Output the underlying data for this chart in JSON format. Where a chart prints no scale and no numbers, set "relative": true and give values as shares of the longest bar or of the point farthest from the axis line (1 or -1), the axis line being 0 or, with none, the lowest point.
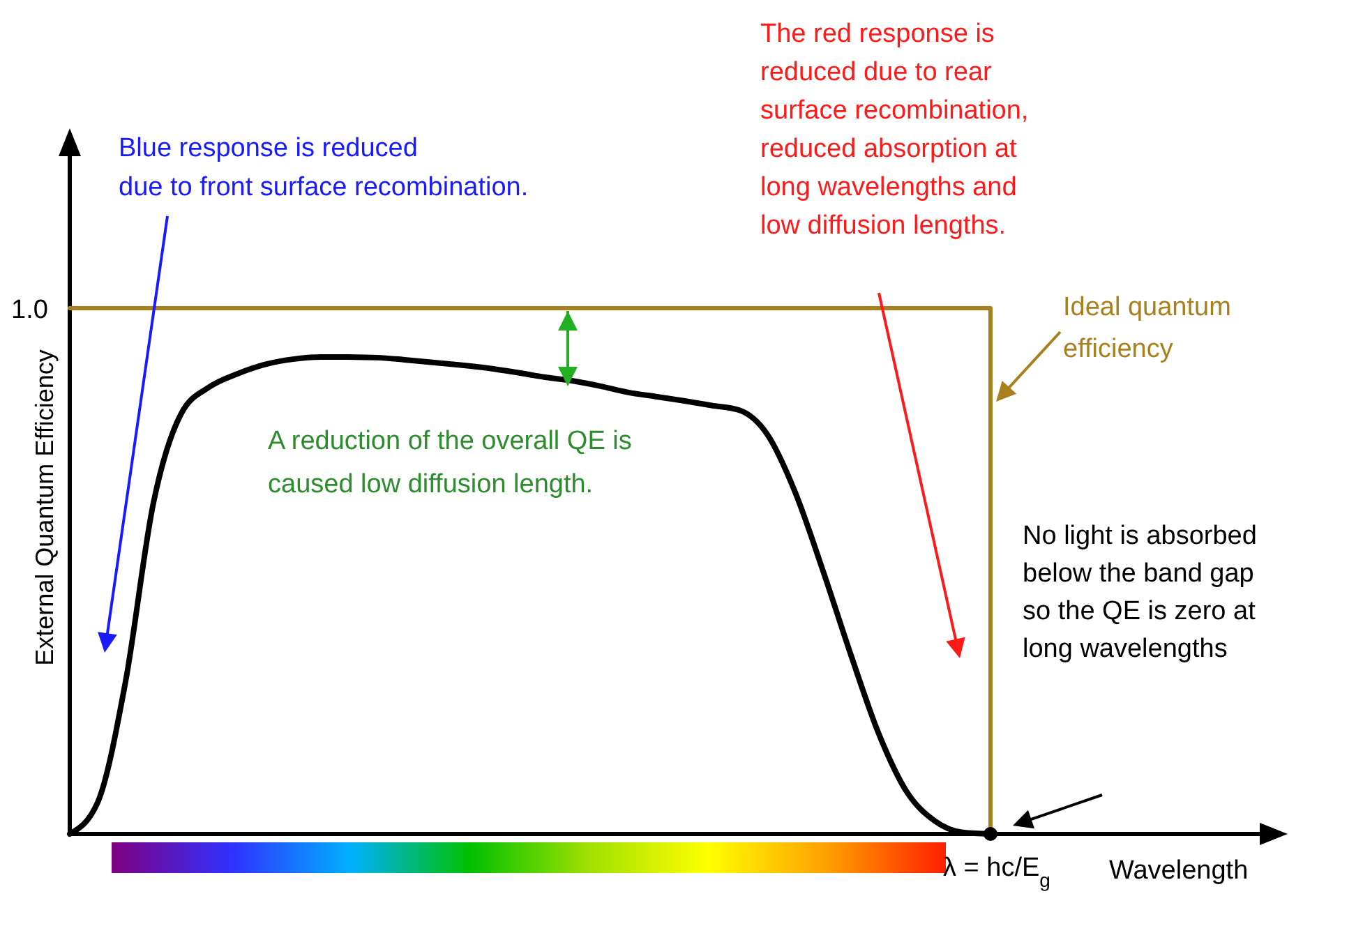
{
  "chart_data": {
    "type": "line",
    "relative": true,
    "xlabel": "Wavelength",
    "ylabel": "External Quantum Efficiency",
    "categories": [
      null,
      null,
      null,
      null,
      null,
      null,
      null,
      null,
      null,
      null,
      null,
      null,
      null,
      null,
      null,
      null,
      null,
      null,
      null,
      null,
      null,
      null,
      null,
      null,
      null,
      null,
      null,
      null,
      null,
      null,
      null,
      null,
      null,
      null
    ],
    "series": [
      {
        "color": "#000000",
        "values": [
          0,
          0.06,
          0.29,
          0.63,
          0.8,
          0.85,
          0.875,
          0.893,
          0.903,
          0.907,
          0.907,
          0.906,
          0.902,
          0.897,
          0.892,
          0.886,
          0.878,
          0.869,
          0.862,
          0.852,
          0.84,
          0.832,
          0.824,
          0.815,
          0.806,
          0.76,
          0.65,
          0.5,
          0.34,
          0.19,
          0.08,
          0.025,
          0.003,
          0
        ]
      },
      {
        "type": "step",
        "name": "Ideal quantum efficiency",
        "color": "#a8801e",
        "values": [
          1,
          1,
          1,
          1,
          1,
          1,
          1,
          1,
          1,
          1,
          1,
          1,
          1,
          1,
          1,
          1,
          1,
          1,
          1,
          1,
          1,
          1,
          1,
          1,
          1,
          1,
          1,
          1,
          1,
          1,
          1,
          1,
          1,
          0
        ]
      }
    ],
    "annotations": [
      "Blue response is reduced\ndue to front surface recombination.",
      "The red response is\nreduced due to rear\nsurface recombination,\nreduced absorption at\nlong wavelengths and\nlow diffusion lengths.",
      "A reduction of the overall QE is\ncaused low diffusion length.",
      "No light  is absorbed\nbelow the band gap\nso the QE is zero at\nlong wavelengths",
      "1.0",
      "λ = hc/E$_{g}$"
    ]
  }
}
